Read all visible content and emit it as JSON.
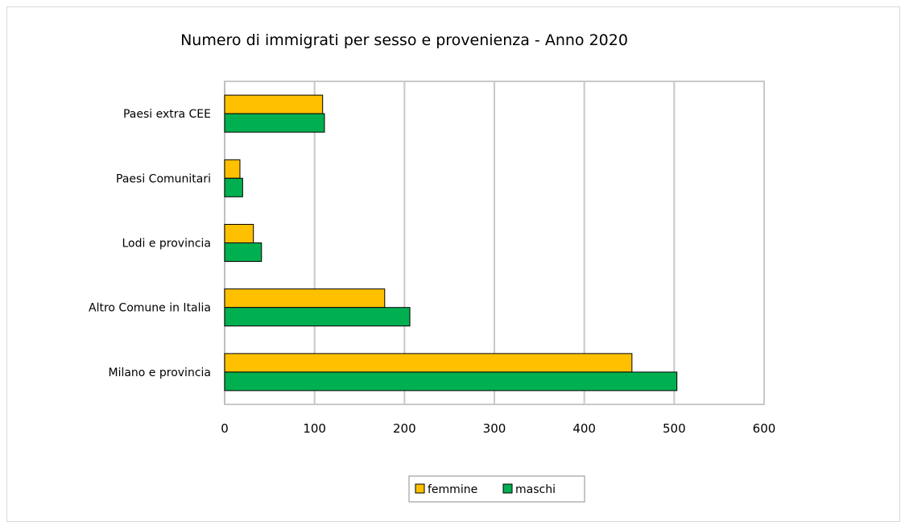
{
  "chart_data": {
    "type": "bar",
    "orientation": "horizontal",
    "title": "Numero di immigrati per sesso e provenienza - Anno 2020",
    "categories": [
      "Paesi extra CEE",
      "Paesi Comunitari",
      "Lodi e provincia",
      "Altro Comune in Italia",
      "Milano e provincia"
    ],
    "series": [
      {
        "name": "femmine",
        "color": "#FFC000",
        "values": [
          109,
          17,
          32,
          178,
          453
        ]
      },
      {
        "name": "maschi",
        "color": "#00B050",
        "values": [
          111,
          20,
          41,
          206,
          503
        ]
      }
    ],
    "xlim": [
      0,
      600
    ],
    "xticks": [
      0,
      100,
      200,
      300,
      400,
      500,
      600
    ],
    "grid": "vertical",
    "legend": "bottom"
  }
}
